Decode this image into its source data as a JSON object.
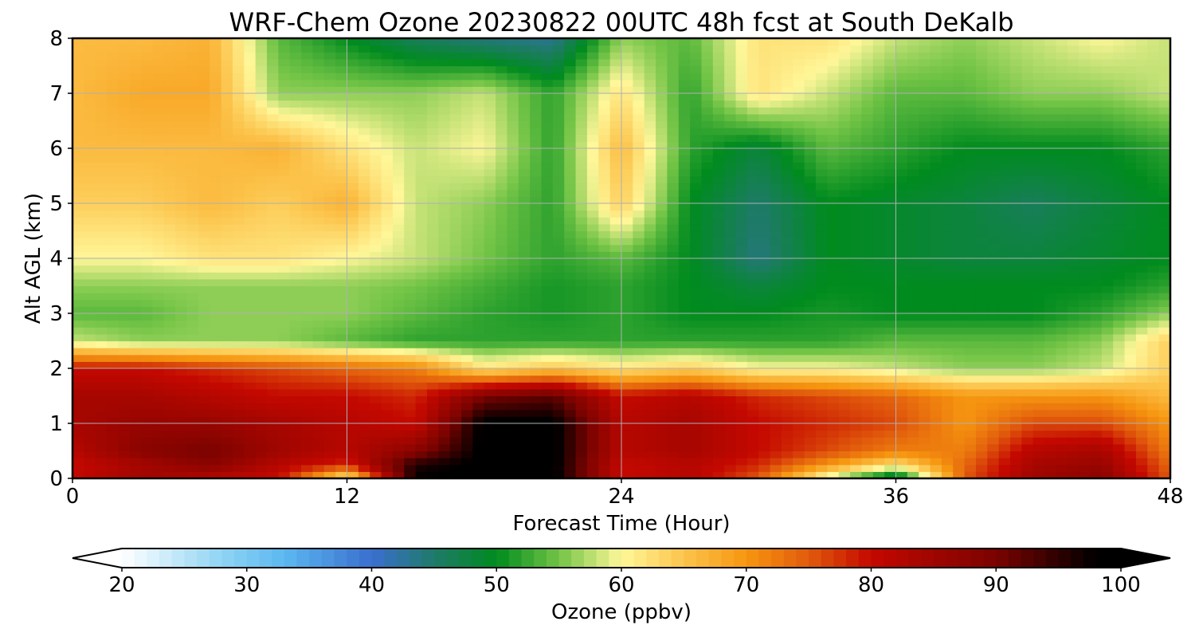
{
  "chart_data": {
    "type": "heatmap",
    "title": "WRF-Chem Ozone  20230822 00UTC 48h fcst at South DeKalb",
    "xlabel": "Forecast Time (Hour)",
    "ylabel": "Alt AGL (km)",
    "x_range": [
      0,
      48
    ],
    "y_range": [
      0,
      8
    ],
    "x_ticks": [
      0,
      12,
      24,
      36,
      48
    ],
    "y_ticks": [
      0,
      1,
      2,
      3,
      4,
      5,
      6,
      7,
      8
    ],
    "grid": true,
    "colorbar": {
      "label": "Ozone  (ppbv)",
      "range": [
        20,
        100
      ],
      "ticks": [
        20,
        30,
        40,
        50,
        60,
        70,
        80,
        90,
        100
      ],
      "extend": "both",
      "color_stops": [
        {
          "value": 20,
          "color": "#ffffff"
        },
        {
          "value": 28,
          "color": "#8fd4f4"
        },
        {
          "value": 33,
          "color": "#5bb8f0"
        },
        {
          "value": 40,
          "color": "#3a6fd0"
        },
        {
          "value": 45,
          "color": "#1f7a6a"
        },
        {
          "value": 50,
          "color": "#008b1e"
        },
        {
          "value": 55,
          "color": "#72c446"
        },
        {
          "value": 60,
          "color": "#fff799"
        },
        {
          "value": 65,
          "color": "#fcc44c"
        },
        {
          "value": 70,
          "color": "#f69610"
        },
        {
          "value": 75,
          "color": "#e15a0c"
        },
        {
          "value": 80,
          "color": "#c40800"
        },
        {
          "value": 90,
          "color": "#7a0300"
        },
        {
          "value": 98,
          "color": "#000000"
        },
        {
          "value": 100,
          "color": "#000000"
        }
      ]
    },
    "x_hours": [
      0,
      3,
      6,
      9,
      12,
      15,
      18,
      21,
      24,
      27,
      30,
      33,
      36,
      39,
      42,
      45,
      48
    ],
    "z_km": [
      0,
      0.25,
      0.5,
      1,
      1.5,
      2,
      2.5,
      3,
      3.5,
      4,
      5,
      6,
      7,
      8
    ],
    "values": [
      [
        80,
        85,
        82,
        80,
        60,
        98,
        99,
        99,
        80,
        82,
        75,
        58,
        45,
        75,
        85,
        88,
        75
      ],
      [
        80,
        84,
        88,
        82,
        78,
        96,
        99,
        99,
        80,
        82,
        78,
        70,
        62,
        74,
        84,
        86,
        74
      ],
      [
        82,
        88,
        90,
        85,
        82,
        88,
        99,
        99,
        82,
        84,
        80,
        76,
        72,
        72,
        82,
        84,
        72
      ],
      [
        84,
        86,
        86,
        84,
        82,
        80,
        99,
        99,
        82,
        84,
        80,
        78,
        76,
        70,
        76,
        76,
        70
      ],
      [
        84,
        84,
        82,
        80,
        80,
        78,
        90,
        92,
        80,
        82,
        78,
        76,
        74,
        70,
        70,
        70,
        66
      ],
      [
        80,
        80,
        78,
        76,
        74,
        72,
        62,
        65,
        62,
        64,
        60,
        60,
        58,
        56,
        56,
        58,
        64
      ],
      [
        58,
        56,
        56,
        56,
        54,
        52,
        52,
        52,
        52,
        52,
        52,
        52,
        54,
        54,
        54,
        56,
        64
      ],
      [
        54,
        54,
        56,
        56,
        56,
        54,
        52,
        51,
        52,
        50,
        50,
        51,
        50,
        50,
        50,
        52,
        56
      ],
      [
        56,
        56,
        56,
        56,
        56,
        55,
        53,
        51,
        52,
        50,
        48,
        50,
        50,
        50,
        50,
        50,
        52
      ],
      [
        60,
        60,
        62,
        62,
        60,
        58,
        55,
        52,
        54,
        50,
        44,
        50,
        49,
        48,
        48,
        49,
        50
      ],
      [
        64,
        64,
        66,
        64,
        67,
        58,
        56,
        52,
        64,
        50,
        45,
        50,
        49,
        48,
        46,
        48,
        50
      ],
      [
        66,
        66,
        66,
        67,
        62,
        58,
        60,
        52,
        66,
        52,
        48,
        54,
        52,
        50,
        50,
        50,
        52
      ],
      [
        66,
        68,
        68,
        56,
        56,
        56,
        58,
        52,
        62,
        52,
        62,
        58,
        54,
        54,
        56,
        56,
        58
      ],
      [
        66,
        66,
        67,
        54,
        50,
        46,
        44,
        43,
        56,
        54,
        62,
        62,
        58,
        56,
        58,
        60,
        58
      ]
    ]
  }
}
